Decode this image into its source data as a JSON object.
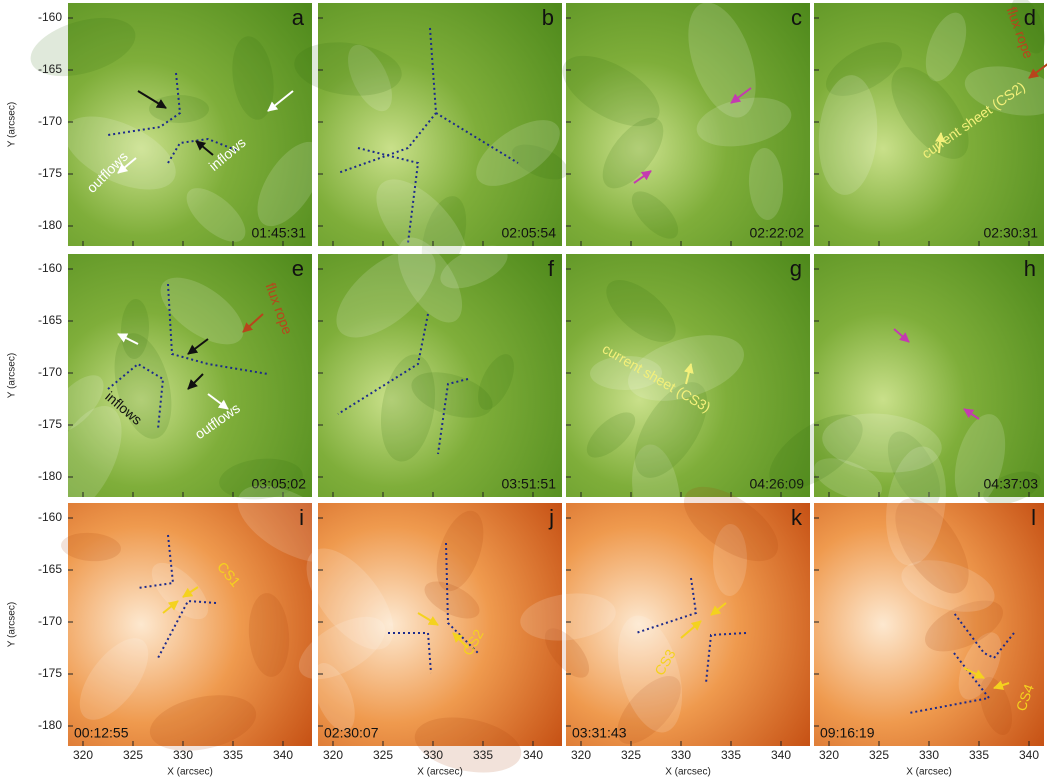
{
  "axes": {
    "y_label": "Y (arcsec)",
    "x_label": "X (arcsec)",
    "yticks": [
      -160,
      -165,
      -170,
      -175,
      -180
    ],
    "xticks": [
      320,
      325,
      330,
      335,
      340
    ]
  },
  "panels": [
    {
      "letter": "a",
      "time": "01:45:31",
      "labels": [
        "outflows",
        "inflows"
      ]
    },
    {
      "letter": "b",
      "time": "02:05:54",
      "labels": []
    },
    {
      "letter": "c",
      "time": "02:22:02",
      "labels": []
    },
    {
      "letter": "d",
      "time": "02:30:31",
      "labels": [
        "flux rope",
        "current sheet (CS2)"
      ]
    },
    {
      "letter": "e",
      "time": "03:05:02",
      "labels": [
        "flux rope",
        "inflows",
        "outflows"
      ]
    },
    {
      "letter": "f",
      "time": "03:51:51",
      "labels": []
    },
    {
      "letter": "g",
      "time": "04:26:09",
      "labels": [
        "current sheet (CS3)"
      ]
    },
    {
      "letter": "h",
      "time": "04:37:03",
      "labels": []
    },
    {
      "letter": "i",
      "time": "00:12:55",
      "labels": [
        "CS1"
      ]
    },
    {
      "letter": "j",
      "time": "02:30:07",
      "labels": [
        "CS2"
      ]
    },
    {
      "letter": "k",
      "time": "03:31:43",
      "labels": [
        "CS3"
      ]
    },
    {
      "letter": "l",
      "time": "09:16:19",
      "labels": [
        "CS4"
      ]
    }
  ]
}
